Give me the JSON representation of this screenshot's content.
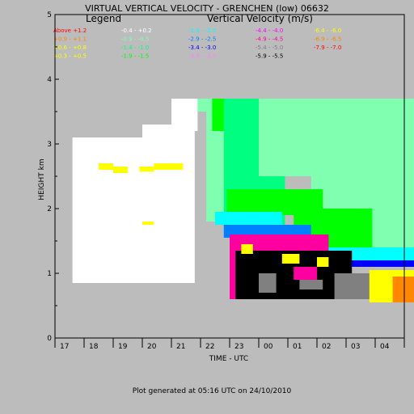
{
  "chart_data": {
    "type": "heatmap",
    "title": "VIRTUAL VERTICAL VELOCITY - GRENCHEN (low) 06632",
    "xlabel": "TIME - UTC",
    "ylabel": "HEIGHT km",
    "footer": "Plot generated at 05:16 UTC on 24/10/2010",
    "legend_title": "Legend",
    "legend_subtitle": "Vertical Velocity (m/s)",
    "x_ticks": [
      "17",
      "18",
      "19",
      "20",
      "21",
      "22",
      "23",
      "00",
      "01",
      "02",
      "03",
      "04"
    ],
    "y_ticks": [
      "0",
      "1",
      "2",
      "3",
      "4",
      "5"
    ],
    "ylim": [
      0,
      5
    ],
    "legend": [
      {
        "label": "Above +1.2",
        "color": "#ff0000"
      },
      {
        "label": "+0.9 - +1.1",
        "color": "#ff8800"
      },
      {
        "label": "+0.6 - +0.8",
        "color": "#ffff00"
      },
      {
        "label": "+0.3 - +0.5",
        "color": "#ffff00"
      },
      {
        "label": "-0.4 - +0.2",
        "color": "#ffffff"
      },
      {
        "label": "-0.9 - -0.5",
        "color": "#80ffb0"
      },
      {
        "label": "-1.4 - -1.0",
        "color": "#00ff80"
      },
      {
        "label": "-1.9 - -1.5",
        "color": "#00ff00"
      },
      {
        "label": "-2.4 - -2.0",
        "color": "#00ffff"
      },
      {
        "label": "-2.9 - -2.5",
        "color": "#0080ff"
      },
      {
        "label": "-3.4 - -3.0",
        "color": "#0000ff"
      },
      {
        "label": "-3.9 - -3.5",
        "color": "#ff80ff"
      },
      {
        "label": "-4.4 - -4.0",
        "color": "#ff00ff"
      },
      {
        "label": "-4.9 - -4.5",
        "color": "#ff00a0"
      },
      {
        "label": "-5.4 - -5.0",
        "color": "#808080"
      },
      {
        "label": "-5.9 - -5.5",
        "color": "#000000"
      },
      {
        "label": "-6.4 - -6.0",
        "color": "#ffff00"
      },
      {
        "label": "-6.9 - -6.5",
        "color": "#ff8800"
      },
      {
        "label": "-7.9 - -7.0",
        "color": "#ff0000"
      }
    ],
    "cells": [
      {
        "x0": 17.6,
        "x1": 20.8,
        "y0": 0.85,
        "y1": 3.1,
        "color": "#ffffff"
      },
      {
        "x0": 20.0,
        "x1": 21.8,
        "y0": 0.85,
        "y1": 3.3,
        "color": "#ffffff"
      },
      {
        "x0": 21.0,
        "x1": 21.9,
        "y0": 3.2,
        "y1": 3.7,
        "color": "#ffffff"
      },
      {
        "x0": 18.5,
        "x1": 19.0,
        "y0": 2.6,
        "y1": 2.7,
        "color": "#ffff00"
      },
      {
        "x0": 19.0,
        "x1": 19.5,
        "y0": 2.55,
        "y1": 2.65,
        "color": "#ffff00"
      },
      {
        "x0": 19.9,
        "x1": 20.4,
        "y0": 2.57,
        "y1": 2.65,
        "color": "#ffff00"
      },
      {
        "x0": 20.4,
        "x1": 21.4,
        "y0": 2.6,
        "y1": 2.7,
        "color": "#ffff00"
      },
      {
        "x0": 20.0,
        "x1": 20.4,
        "y0": 1.75,
        "y1": 1.8,
        "color": "#ffff00"
      },
      {
        "x0": 21.9,
        "x1": 22.3,
        "y0": 3.5,
        "y1": 3.7,
        "color": "#80ffb0"
      },
      {
        "x0": 22.2,
        "x1": 23.2,
        "y0": 1.8,
        "y1": 3.7,
        "color": "#80ffb0"
      },
      {
        "x0": 22.4,
        "x1": 23.2,
        "y0": 3.2,
        "y1": 3.7,
        "color": "#00ff00"
      },
      {
        "x0": 22.8,
        "x1": 24.9,
        "y0": 1.65,
        "y1": 3.7,
        "color": "#00ff80"
      },
      {
        "x0": 24.0,
        "x1": 29.8,
        "y0": 2.5,
        "y1": 3.7,
        "color": "#80ffb0"
      },
      {
        "x0": 25.8,
        "x1": 29.8,
        "y0": 1.3,
        "y1": 3.7,
        "color": "#80ffb0"
      },
      {
        "x0": 22.9,
        "x1": 26.2,
        "y0": 1.9,
        "y1": 2.3,
        "color": "#00ff00"
      },
      {
        "x0": 25.2,
        "x1": 27.9,
        "y0": 1.3,
        "y1": 2.0,
        "color": "#00ff00"
      },
      {
        "x0": 22.5,
        "x1": 24.8,
        "y0": 1.75,
        "y1": 1.95,
        "color": "#00ffff"
      },
      {
        "x0": 22.8,
        "x1": 25.8,
        "y0": 1.55,
        "y1": 1.75,
        "color": "#0080ff"
      },
      {
        "x0": 25.8,
        "x1": 29.8,
        "y0": 1.15,
        "y1": 1.4,
        "color": "#00ffff"
      },
      {
        "x0": 26.6,
        "x1": 29.8,
        "y0": 1.1,
        "y1": 1.2,
        "color": "#0000ff"
      },
      {
        "x0": 23.0,
        "x1": 26.4,
        "y0": 1.3,
        "y1": 1.6,
        "color": "#ff00a0"
      },
      {
        "x0": 23.0,
        "x1": 23.9,
        "y0": 0.6,
        "y1": 1.6,
        "color": "#ff00a0"
      },
      {
        "x0": 23.2,
        "x1": 27.2,
        "y0": 0.6,
        "y1": 1.35,
        "color": "#000000"
      },
      {
        "x0": 24.0,
        "x1": 24.6,
        "y0": 0.7,
        "y1": 1.0,
        "color": "#808080"
      },
      {
        "x0": 25.2,
        "x1": 26.0,
        "y0": 0.9,
        "y1": 1.1,
        "color": "#ff00a0"
      },
      {
        "x0": 25.4,
        "x1": 26.2,
        "y0": 0.75,
        "y1": 0.9,
        "color": "#808080"
      },
      {
        "x0": 23.4,
        "x1": 23.8,
        "y0": 1.3,
        "y1": 1.45,
        "color": "#ffff00"
      },
      {
        "x0": 24.8,
        "x1": 25.4,
        "y0": 1.15,
        "y1": 1.3,
        "color": "#ffff00"
      },
      {
        "x0": 26.0,
        "x1": 26.4,
        "y0": 1.1,
        "y1": 1.25,
        "color": "#ffff00"
      },
      {
        "x0": 26.6,
        "x1": 28.2,
        "y0": 0.6,
        "y1": 1.0,
        "color": "#808080"
      },
      {
        "x0": 27.8,
        "x1": 29.8,
        "y0": 0.55,
        "y1": 1.05,
        "color": "#ffff00"
      },
      {
        "x0": 28.6,
        "x1": 29.8,
        "y0": 0.55,
        "y1": 0.95,
        "color": "#ff8800"
      }
    ]
  }
}
